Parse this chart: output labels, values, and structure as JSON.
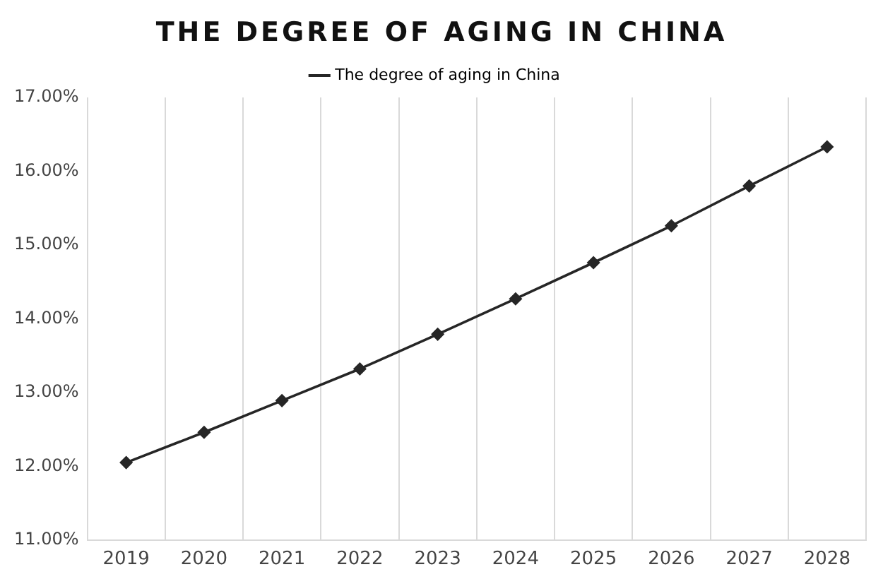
{
  "chart_data": {
    "type": "line",
    "title": "THE DEGREE OF AGING IN CHINA",
    "categories": [
      "2019",
      "2020",
      "2021",
      "2022",
      "2023",
      "2024",
      "2025",
      "2026",
      "2027",
      "2028"
    ],
    "series": [
      {
        "name": "The degree of aging in China",
        "color": "#262626",
        "values": [
          12.05,
          12.46,
          12.89,
          13.32,
          13.79,
          14.27,
          14.76,
          15.26,
          15.8,
          16.33
        ]
      }
    ],
    "ylim": [
      11,
      17
    ],
    "yticks": [
      {
        "value": 11,
        "label": "11.00%"
      },
      {
        "value": 12,
        "label": "12.00%"
      },
      {
        "value": 13,
        "label": "13.00%"
      },
      {
        "value": 14,
        "label": "14.00%"
      },
      {
        "value": 15,
        "label": "15.00%"
      },
      {
        "value": 16,
        "label": "16.00%"
      },
      {
        "value": 17,
        "label": "17.00%"
      }
    ],
    "grid": "x",
    "legend": "top",
    "marker": "diamond",
    "line_style": "solid"
  }
}
